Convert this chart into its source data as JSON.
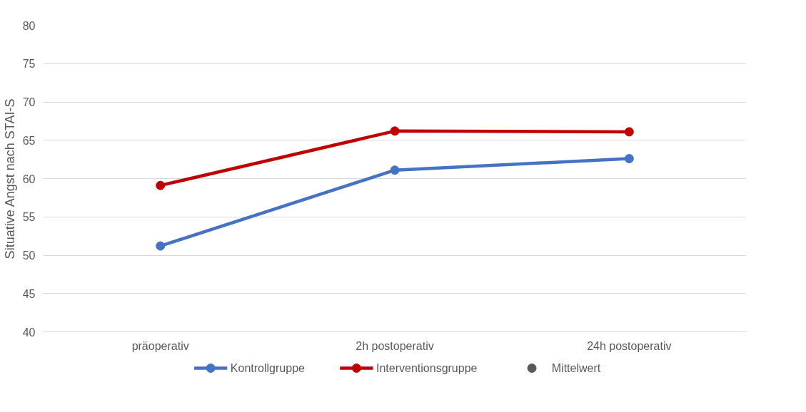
{
  "chart_data": {
    "type": "line",
    "ylabel": "Situative Angst nach STAI-S",
    "categories": [
      "präoperativ",
      "2h postoperativ",
      "24h postoperativ"
    ],
    "series": [
      {
        "name": "Kontrollgruppe",
        "color": "#4472c4",
        "values": [
          51.2,
          61.1,
          62.6
        ]
      },
      {
        "name": "Interventionsgruppe",
        "color": "#c00000",
        "values": [
          59.1,
          66.2,
          66.1
        ]
      },
      {
        "name": "Mittelwert",
        "color": "#595959",
        "type": "scatter",
        "values": [
          null,
          null,
          null
        ]
      }
    ],
    "ylim": [
      40,
      80
    ],
    "yticks": [
      40,
      45,
      50,
      55,
      60,
      65,
      70,
      75,
      80
    ],
    "grid": "y",
    "legend": "bottom",
    "marker": "circle",
    "line_style": "solid"
  }
}
